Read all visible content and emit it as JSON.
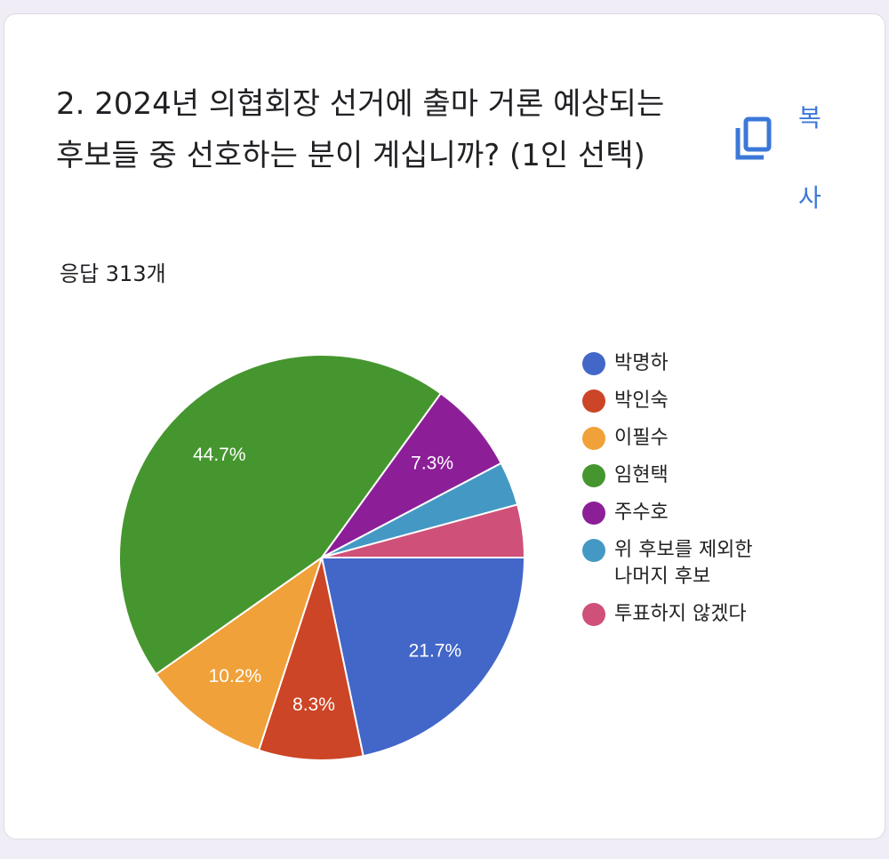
{
  "question": {
    "title": "2. 2024년 의협회장 선거에 출마 거론 예상되는 후보들 중 선호하는 분이 계십니까? (1인 선택)",
    "response_count": "응답 313개"
  },
  "copy_button": {
    "label": "복사",
    "icon": "copy-icon",
    "color": "#3b78d8"
  },
  "chart_data": {
    "type": "pie",
    "categories": [
      "박명하",
      "박인숙",
      "이필수",
      "임현택",
      "주수호",
      "위 후보를 제외한 나머지 후보",
      "투표하지 않겠다"
    ],
    "values": [
      21.7,
      8.3,
      10.2,
      44.7,
      7.3,
      3.5,
      4.2
    ],
    "labels": [
      "21.7%",
      "8.3%",
      "10.2%",
      "44.7%",
      "7.3%",
      "",
      ""
    ],
    "colors": [
      "#4267c8",
      "#cc4526",
      "#f0a139",
      "#46962f",
      "#8c1f98",
      "#4499c4",
      "#cf5078"
    ],
    "legend_position": "right"
  }
}
